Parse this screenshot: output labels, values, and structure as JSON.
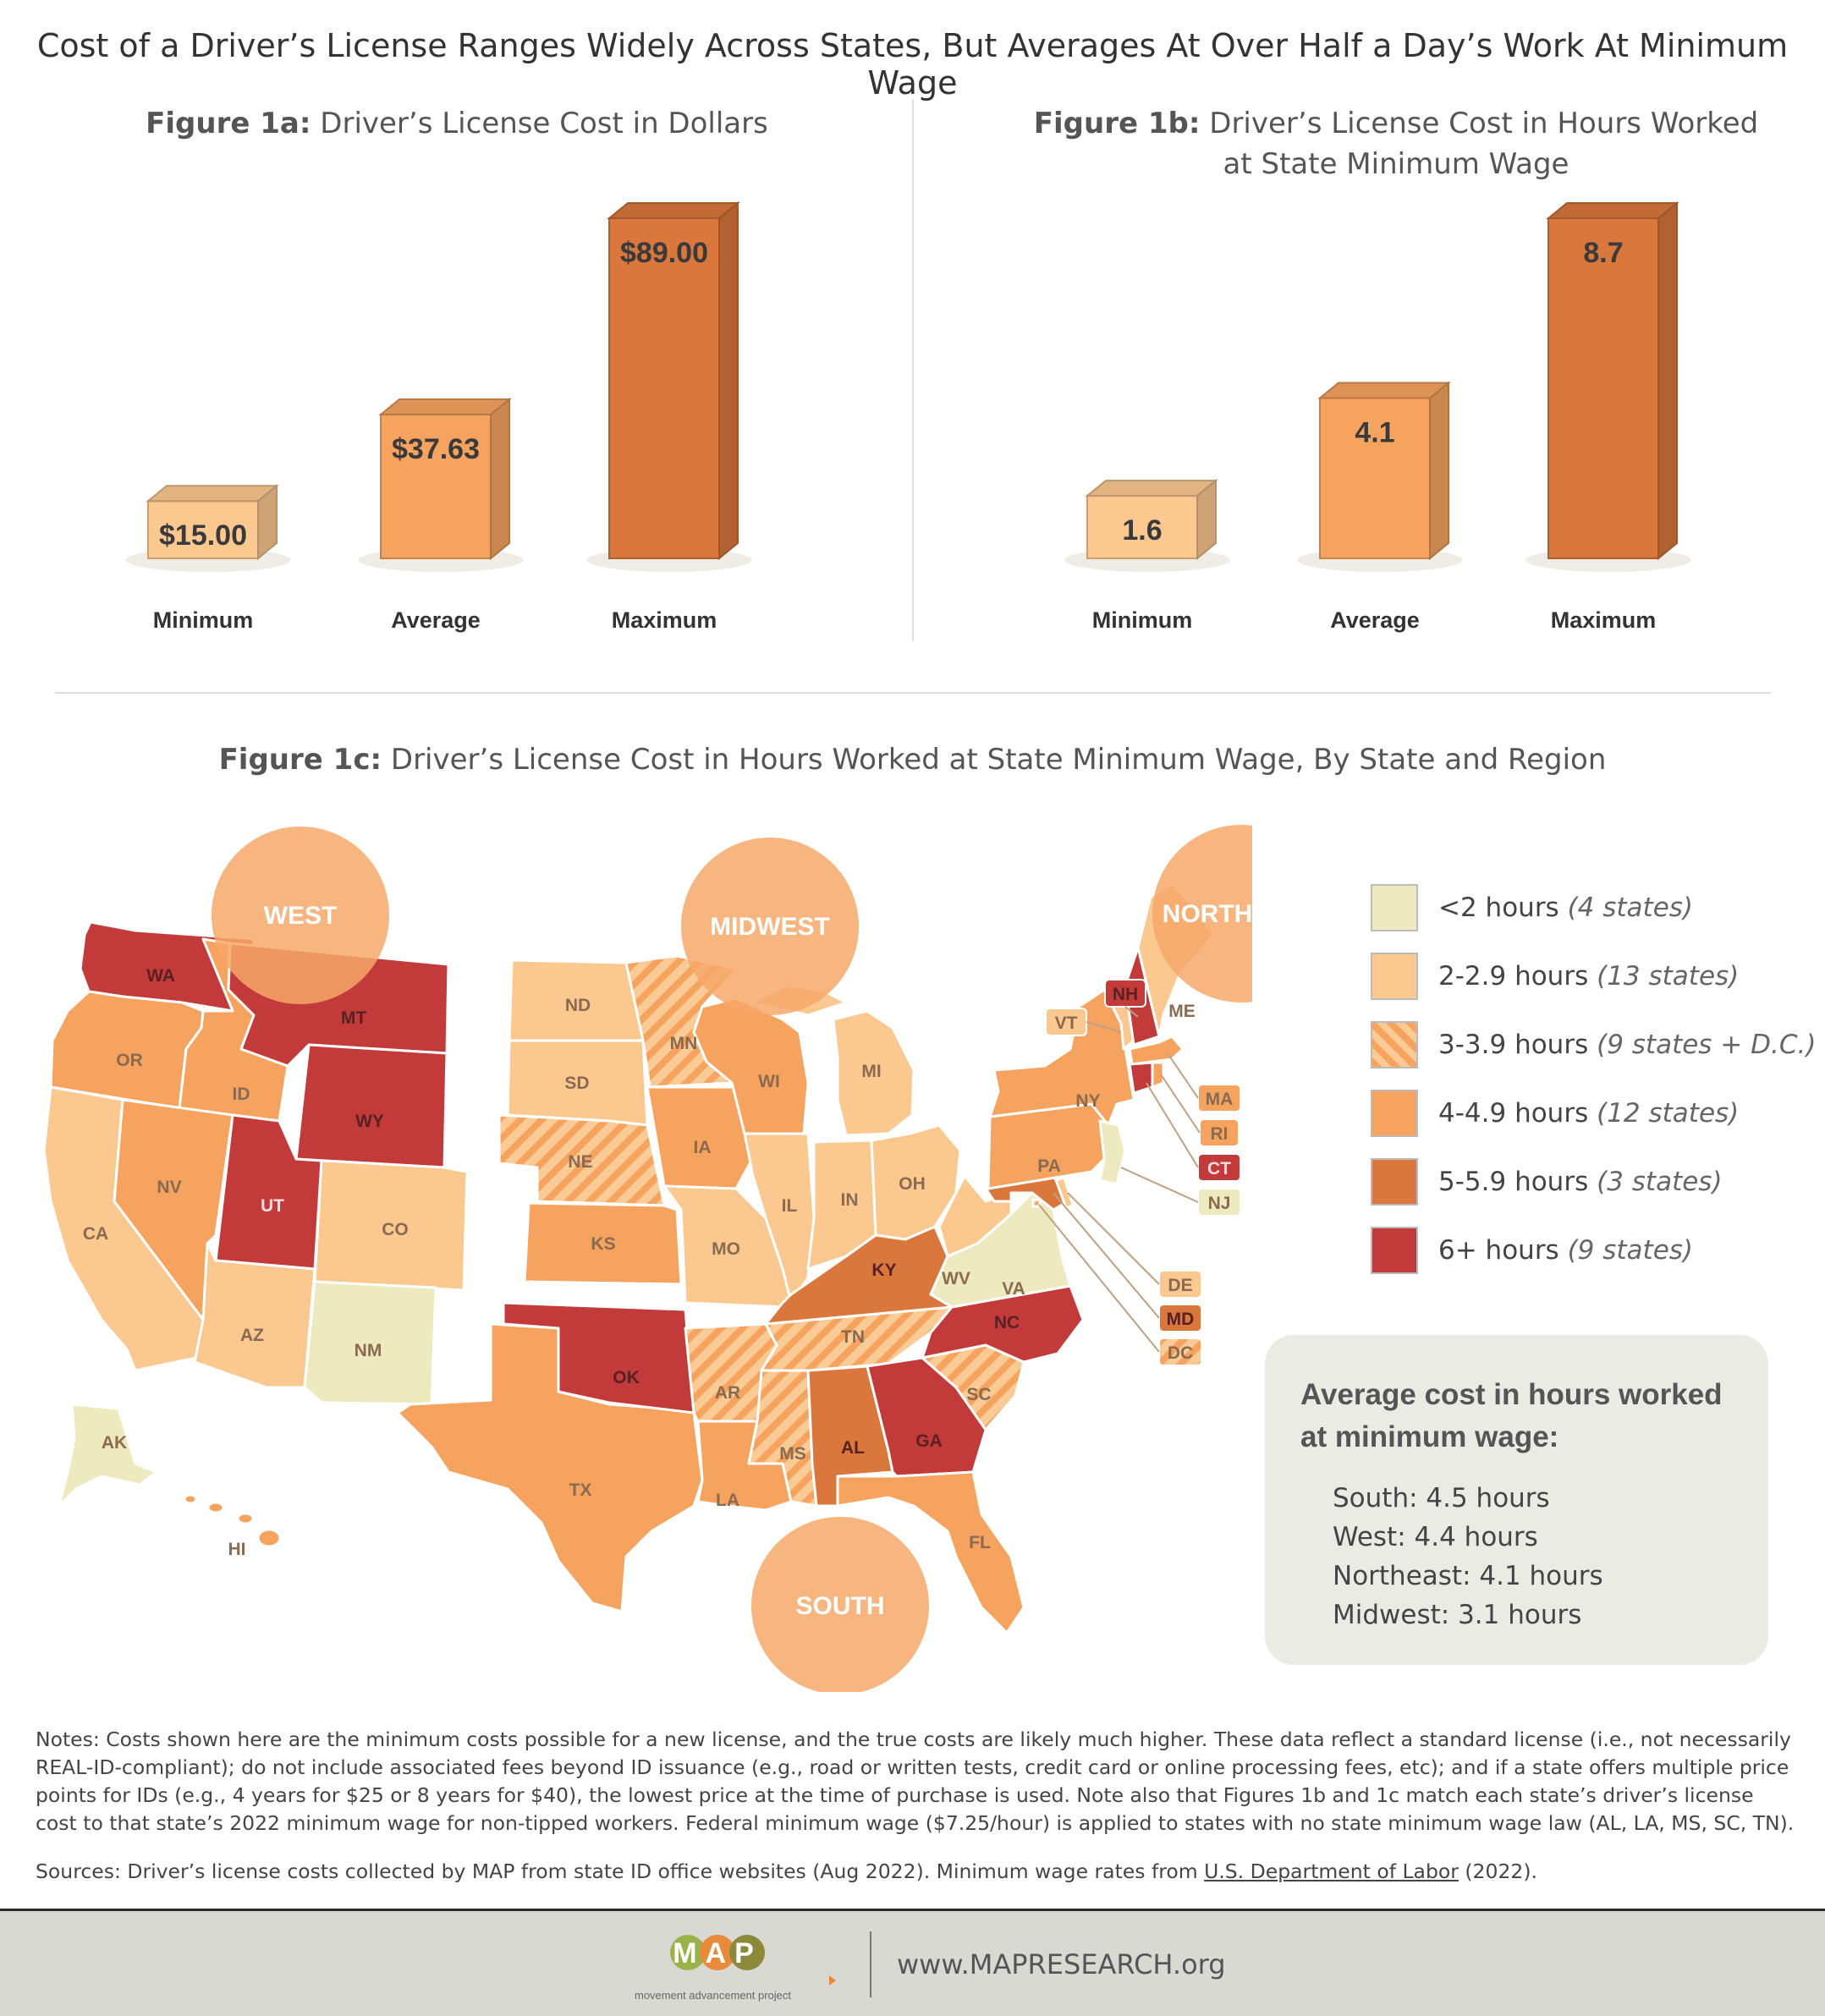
{
  "title": "Cost of a Driver’s License Ranges Widely Across States, But Averages At Over Half a Day’s Work At Minimum Wage",
  "colors": {
    "lt2": "#eeeac0",
    "h2": "#fbc890",
    "h3": "#f8b276",
    "h4": "#f5a35e",
    "h5": "#d9773c",
    "h6": "#c23a3a",
    "circle": "#f6a86a"
  },
  "chart_data": [
    {
      "type": "bar",
      "fig_label": "Figure 1a:",
      "fig_title": "Driver’s License Cost in Dollars",
      "categories": [
        "Minimum",
        "Average",
        "Maximum"
      ],
      "values": [
        15.0,
        37.63,
        89.0
      ],
      "value_labels": [
        "$15.00",
        "$37.63",
        "$89.00"
      ],
      "ylim": [
        0,
        89
      ]
    },
    {
      "type": "bar",
      "fig_label": "Figure 1b:",
      "fig_title_line1": "Driver’s License Cost in Hours Worked",
      "fig_title_line2": "at State Minimum Wage",
      "categories": [
        "Minimum",
        "Average",
        "Maximum"
      ],
      "values": [
        1.6,
        4.1,
        8.7
      ],
      "value_labels": [
        "1.6",
        "4.1",
        "8.7"
      ],
      "ylim": [
        0,
        8.7
      ]
    }
  ],
  "map": {
    "fig_label": "Figure 1c:",
    "fig_title": "Driver’s License Cost in Hours Worked at State Minimum Wage, By State and Region",
    "regions": [
      "WEST",
      "MIDWEST",
      "NORTHEAST",
      "SOUTH"
    ],
    "states": {
      "WA": "WA",
      "OR": "OR",
      "CA": "CA",
      "ID": "ID",
      "NV": "NV",
      "MT": "MT",
      "WY": "WY",
      "UT": "UT",
      "CO": "CO",
      "AZ": "AZ",
      "NM": "NM",
      "AK": "AK",
      "HI": "HI",
      "ND": "ND",
      "SD": "SD",
      "NE": "NE",
      "KS": "KS",
      "MN": "MN",
      "IA": "IA",
      "MO": "MO",
      "WI": "WI",
      "IL": "IL",
      "MI": "MI",
      "IN": "IN",
      "OH": "OH",
      "TX": "TX",
      "OK": "OK",
      "AR": "AR",
      "LA": "LA",
      "MS": "MS",
      "AL": "AL",
      "TN": "TN",
      "KY": "KY",
      "GA": "GA",
      "FL": "FL",
      "SC": "SC",
      "NC": "NC",
      "VA": "VA",
      "WV": "WV",
      "ME": "ME",
      "NH": "NH",
      "VT": "VT",
      "NY": "NY",
      "PA": "PA",
      "NJ": "NJ",
      "MA": "MA",
      "RI": "RI",
      "CT": "CT",
      "DE": "DE",
      "MD": "MD",
      "DC": "DC"
    }
  },
  "legend": [
    {
      "label": "<2 hours",
      "count": "(4 states)"
    },
    {
      "label": "2-2.9 hours",
      "count": "(13 states)"
    },
    {
      "label": "3-3.9 hours",
      "count": "(9 states + D.C.)"
    },
    {
      "label": "4-4.9 hours",
      "count": "(12 states)"
    },
    {
      "label": "5-5.9 hours",
      "count": "(3 states)"
    },
    {
      "label": "6+ hours",
      "count": "(9 states)"
    }
  ],
  "averages": {
    "title": "Average cost in hours worked at minimum wage:",
    "items": [
      "South: 4.5 hours",
      "West: 4.4 hours",
      "Northeast: 4.1 hours",
      "Midwest: 3.1 hours"
    ]
  },
  "notes": "Notes: Costs shown here are the minimum costs possible for a new license, and the true costs are likely much higher. These data reflect a standard license (i.e., not necessarily REAL-ID-compliant); do not include associated fees beyond ID issuance (e.g., road or written tests, credit card or online processing fees, etc); and if a state offers multiple price points for IDs (e.g., 4 years for $25 or 8 years for $40), the lowest price at the time of purchase is used. Note also that Figures 1b and 1c match each state’s driver’s license cost to that state’s 2022 minimum wage for non-tipped workers. Federal minimum wage ($7.25/hour) is applied to states with no state minimum wage law (AL, LA, MS, SC, TN).",
  "sources": {
    "prefix": "Sources: Driver’s license costs collected by MAP from state ID office websites (Aug 2022). Minimum wage rates from ",
    "link": "U.S. Department of Labor",
    "suffix": " (2022)."
  },
  "footer": {
    "logo": "MAP",
    "tagline": "movement advancement project",
    "url": "www.MAPRESEARCH.org"
  }
}
